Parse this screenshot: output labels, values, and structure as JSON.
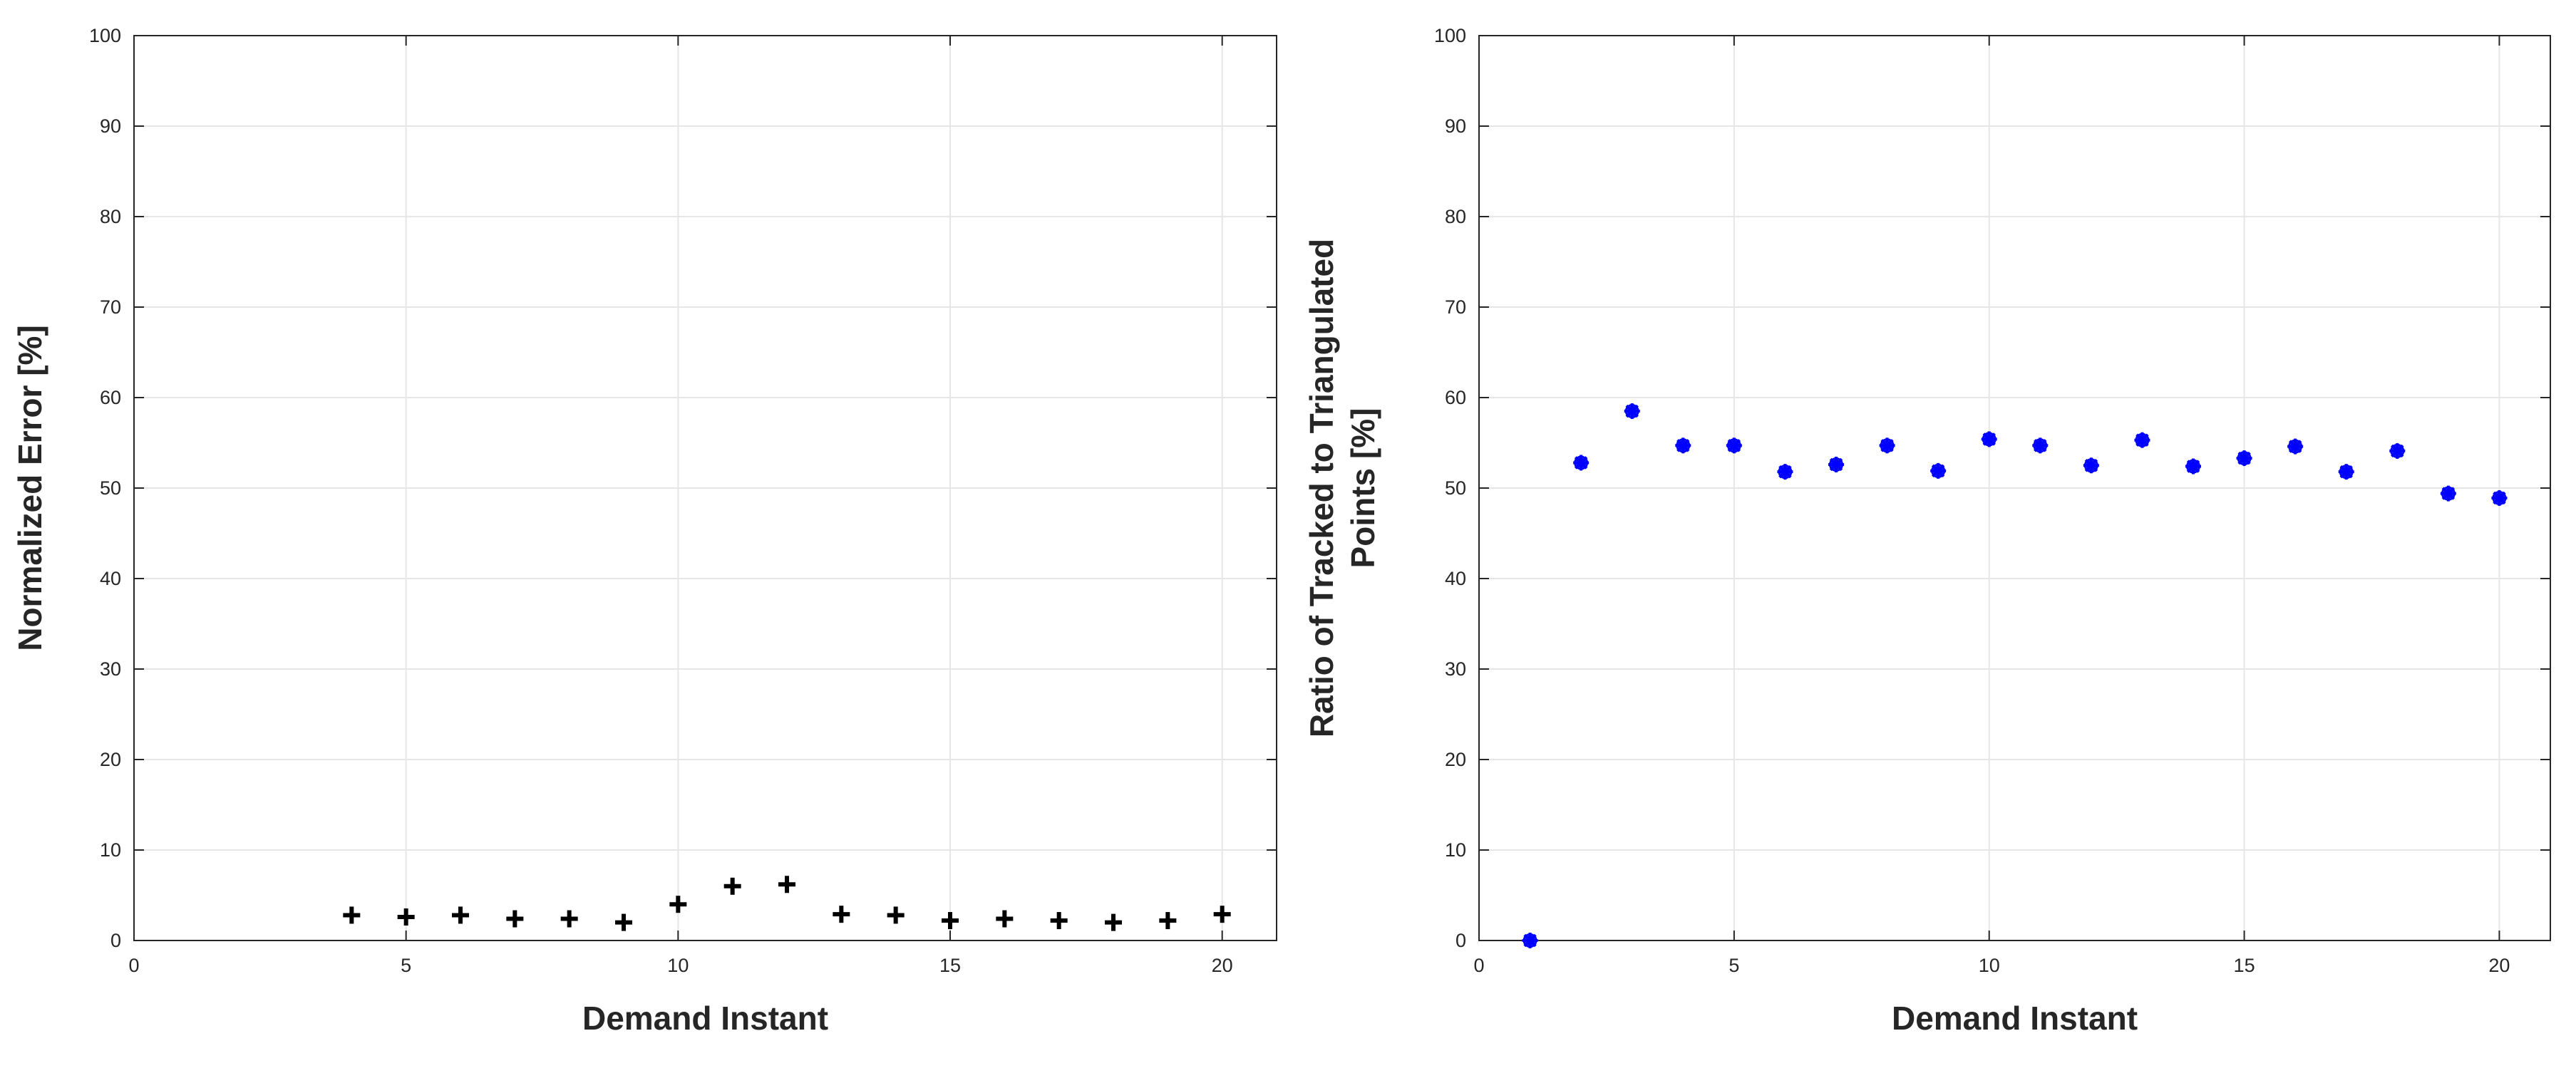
{
  "chart_data": [
    {
      "type": "scatter",
      "title": "",
      "xlabel": "Demand Instant",
      "ylabel": "Normalized Error [%]",
      "xlim": [
        0,
        21
      ],
      "ylim": [
        0,
        100
      ],
      "xticks": [
        0,
        5,
        10,
        15,
        20
      ],
      "yticks": [
        0,
        10,
        20,
        30,
        40,
        50,
        60,
        70,
        80,
        90,
        100
      ],
      "grid": true,
      "marker": "plus",
      "color": "#000000",
      "series": [
        {
          "x": [
            4,
            5,
            6,
            7,
            8,
            9,
            10,
            11,
            12,
            13,
            14,
            15,
            16,
            17,
            18,
            19,
            20
          ],
          "y": [
            2.8,
            2.6,
            2.8,
            2.4,
            2.4,
            2.0,
            4.0,
            6.0,
            6.2,
            2.9,
            2.8,
            2.2,
            2.4,
            2.2,
            2.0,
            2.2,
            2.9
          ]
        }
      ]
    },
    {
      "type": "scatter",
      "title": "",
      "xlabel": "Demand Instant",
      "ylabel_lines": [
        "Ratio of Tracked to Triangulated",
        "Points [%]"
      ],
      "xlim": [
        0,
        21
      ],
      "ylim": [
        0,
        100
      ],
      "xticks": [
        0,
        5,
        10,
        15,
        20
      ],
      "yticks": [
        0,
        10,
        20,
        30,
        40,
        50,
        60,
        70,
        80,
        90,
        100
      ],
      "grid": true,
      "marker": "asterisk",
      "color": "#0000ff",
      "series": [
        {
          "x": [
            1,
            2,
            3,
            4,
            5,
            6,
            7,
            8,
            9,
            10,
            11,
            12,
            13,
            14,
            15,
            16,
            17,
            18,
            19,
            20
          ],
          "y": [
            0,
            52.8,
            58.5,
            54.7,
            54.7,
            51.8,
            52.6,
            54.7,
            51.9,
            55.4,
            54.7,
            52.5,
            55.3,
            52.4,
            53.3,
            54.6,
            51.8,
            54.1,
            49.4,
            48.9
          ]
        }
      ]
    }
  ]
}
